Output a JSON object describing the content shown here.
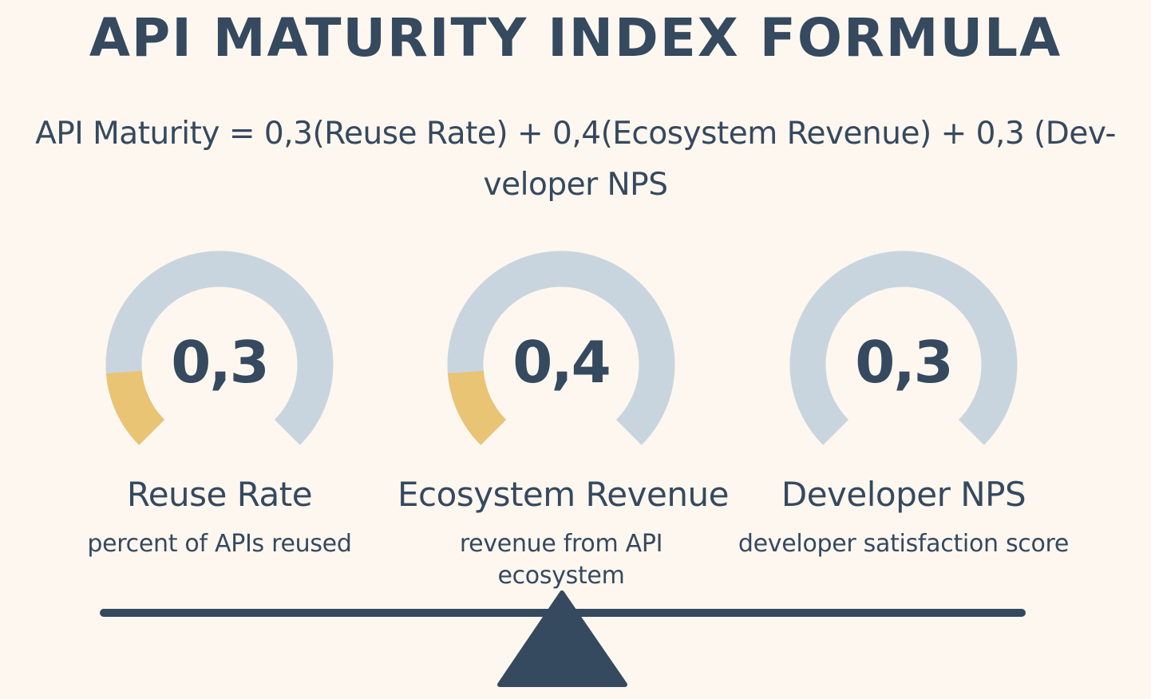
{
  "title": "API MATURITY INDEX FORMULA",
  "formula": {
    "line1": "API Maturity =  0,3(Reuse Rate) + 0,4(Ecosystem Revenue) + 0,3 (Dev-",
    "line2": "veloper NPS"
  },
  "gauges": [
    {
      "value_label": "0,3",
      "weight": 0.3,
      "fill_fraction": 0.3,
      "label": "Reuse Rate",
      "description": "percent of APIs reused"
    },
    {
      "value_label": "0,4",
      "weight": 0.4,
      "fill_fraction": 0.3,
      "label": "Ecosystem Revenue",
      "description": "revenue from API ecosystem"
    },
    {
      "value_label": "0,3",
      "weight": 0.3,
      "fill_fraction": 0,
      "label": "Developer NPS",
      "description": "developer satisfaction score"
    }
  ],
  "colors": {
    "background": "#fdf7ef",
    "text": "#35495f",
    "gauge_track": "#c9d5de",
    "gauge_fill": "#e8c474",
    "scale": "#35495f"
  }
}
